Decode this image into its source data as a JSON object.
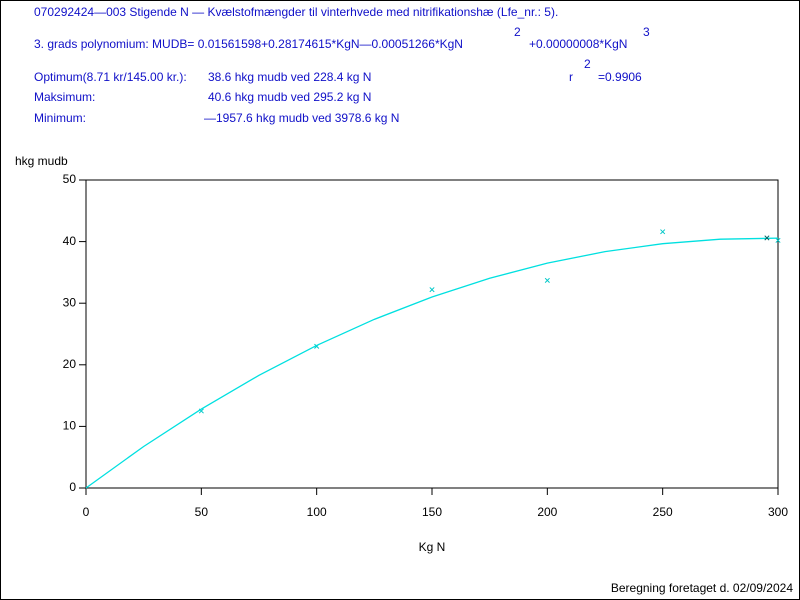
{
  "header": {
    "line1": "070292424—003 Stigende N — Kvælstofmængder til vinterhvede med nitrifikationshæ (Lfe_nr.: 5).",
    "poly_main": "3. grads polynomium: MUDB= 0.01561598+0.28174615*KgN—0.00051266*KgN",
    "poly_exp2": "2",
    "poly_term3": "+0.00000008*KgN",
    "poly_exp3": "3",
    "optimum_label": "Optimum(8.71 kr/145.00 kr.):",
    "optimum_value": "38.6 hkg mudb ved 228.4 kg N",
    "r_label": "r",
    "r_exp": "2",
    "r_value": "=0.9906",
    "maksimum_label": "Maksimum:",
    "maksimum_value": "40.6 hkg mudb ved 295.2 kg N",
    "minimum_label": "Minimum:",
    "minimum_value": "—1957.6 hkg mudb ved 3978.6 kg N"
  },
  "footer": "Beregning foretaget d. 02/09/2024",
  "chart_data": {
    "type": "scatter",
    "y_label": "hkg mudb",
    "x_label": "Kg N",
    "xlim": [
      0,
      300
    ],
    "xticks": [
      0,
      50,
      100,
      150,
      200,
      250,
      300
    ],
    "ylim": [
      0,
      50
    ],
    "yticks": [
      0,
      10,
      20,
      30,
      40,
      50
    ],
    "series": [
      {
        "style": "markers",
        "color": "#00c8c8",
        "x": [
          50,
          100,
          150,
          200,
          250,
          300
        ],
        "values": [
          12.5,
          23,
          32.2,
          33.7,
          41.6,
          40.2
        ]
      },
      {
        "style": "line",
        "color": "#00e0e0",
        "x": [
          0,
          25,
          50,
          75,
          100,
          125,
          150,
          175,
          200,
          225,
          250,
          275,
          300
        ],
        "values": [
          0,
          6.74,
          12.82,
          18.3,
          23.14,
          27.38,
          31.01,
          34.05,
          36.5,
          38.37,
          39.66,
          40.39,
          40.56
        ]
      },
      {
        "style": "markers",
        "color": "#006060",
        "x": [
          295.2
        ],
        "values": [
          40.6
        ]
      }
    ]
  }
}
